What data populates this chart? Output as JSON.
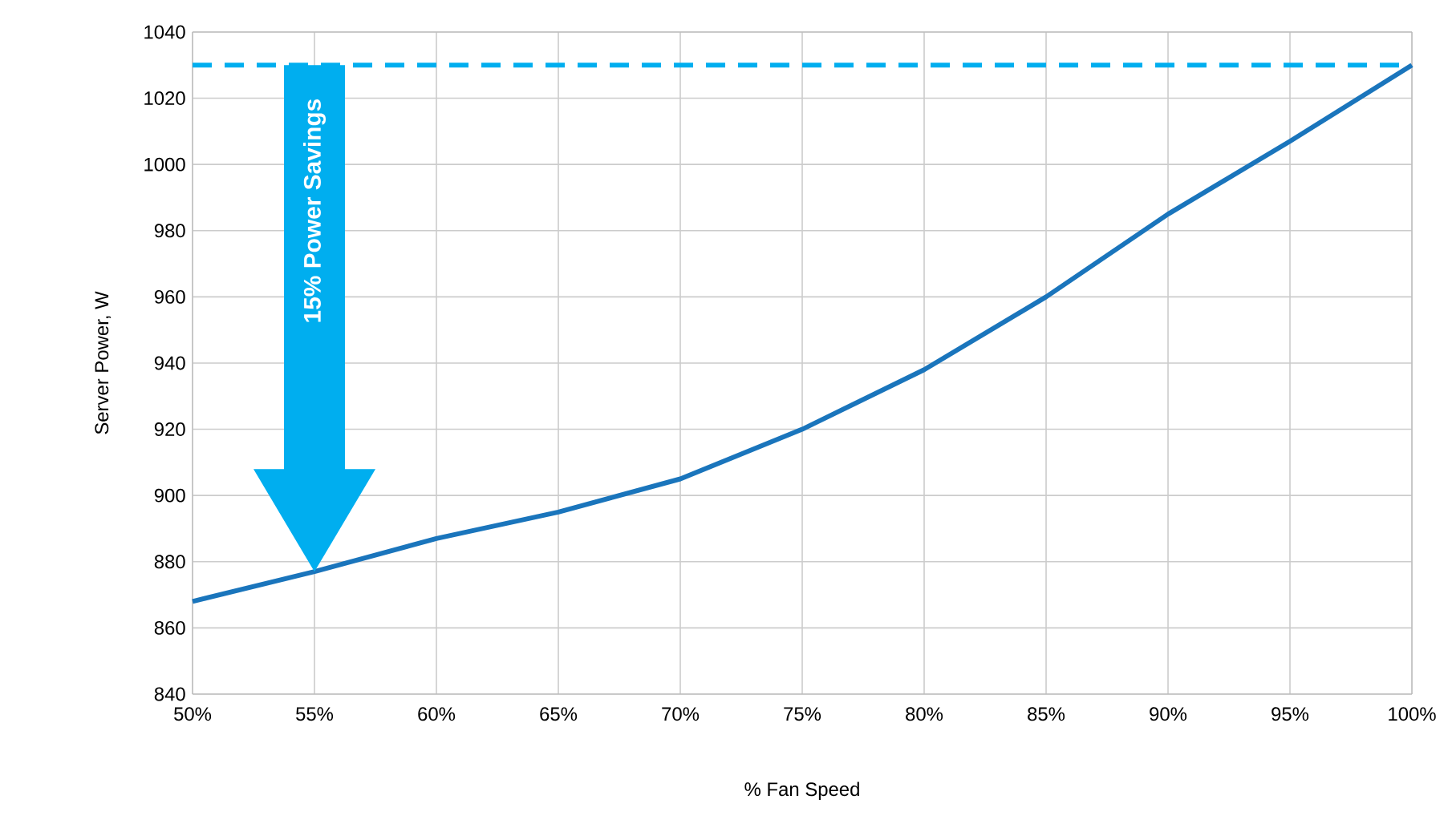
{
  "chart_data": {
    "type": "line",
    "xlabel": "% Fan Speed",
    "ylabel": "Server Power, W",
    "x": [
      50,
      55,
      60,
      65,
      70,
      75,
      80,
      85,
      90,
      95,
      100
    ],
    "series": [
      {
        "color": "#1a75bc",
        "values": [
          868,
          877,
          887,
          895,
          905,
          920,
          938,
          960,
          985,
          1007,
          1030
        ]
      }
    ],
    "xlim": [
      50,
      100
    ],
    "ylim": [
      840,
      1040
    ],
    "xticks": [
      {
        "value": 50,
        "label": "50%"
      },
      {
        "value": 55,
        "label": "55%"
      },
      {
        "value": 60,
        "label": "60%"
      },
      {
        "value": 65,
        "label": "65%"
      },
      {
        "value": 70,
        "label": "70%"
      },
      {
        "value": 75,
        "label": "75%"
      },
      {
        "value": 80,
        "label": "80%"
      },
      {
        "value": 85,
        "label": "85%"
      },
      {
        "value": 90,
        "label": "90%"
      },
      {
        "value": 95,
        "label": "95%"
      },
      {
        "value": 100,
        "label": "100%"
      }
    ],
    "yticks": [
      840,
      860,
      880,
      900,
      920,
      940,
      960,
      980,
      1000,
      1020,
      1040
    ],
    "grid": true,
    "marker": "none",
    "line_style": "solid",
    "ref_lines": [
      {
        "axis": "y",
        "value": 1030,
        "color": "#00aeef",
        "line_style": "dashed"
      }
    ],
    "annotations": [
      "15% Power Savings"
    ]
  }
}
